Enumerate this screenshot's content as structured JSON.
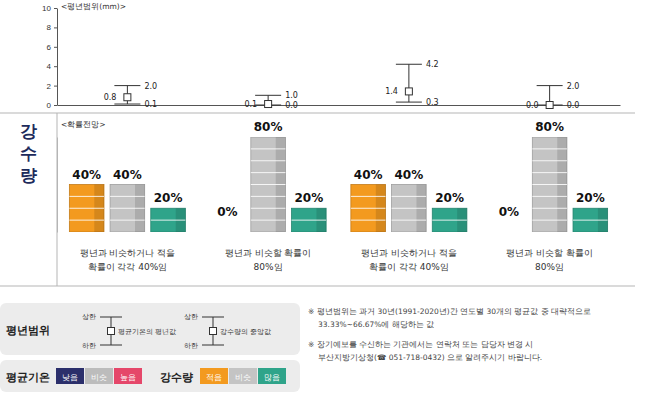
{
  "side_label": "강수량",
  "chart_data": [
    {
      "type": "range",
      "title": "<평년범위(mm)>",
      "categories": [
        null,
        null,
        null,
        null
      ],
      "values": [
        0.8,
        0.1,
        1.4,
        0.0
      ],
      "value_labels": [
        "0.8",
        "0.1",
        "1.4",
        "0.0"
      ],
      "upper": [
        2.0,
        1.0,
        4.2,
        2.0
      ],
      "upper_labels": [
        "2.0",
        "1.0",
        "4.2",
        "2.0"
      ],
      "lower": [
        0.1,
        0.0,
        0.3,
        0.0
      ],
      "lower_labels": [
        "0.1",
        "0.0",
        "0.3",
        "0.0"
      ],
      "color": "#333333",
      "ylim": [
        0,
        10
      ],
      "yticks": [
        0,
        2,
        4,
        6,
        8,
        10
      ],
      "grid": false,
      "data_labels": true
    },
    {
      "type": "bar",
      "title": "<확률전망>",
      "categories": [
        "평년과 비슷하거나 적을\n확률이 각각 40%임",
        "평년과 비슷할 확률이\n80%임",
        "평년과 비슷하거나 적을\n확률이 각각 40%임",
        "평년과 비슷할 확률이\n80%임"
      ],
      "series": [
        {
          "name": "적음",
          "color": "#f39a1f",
          "values": [
            40,
            0,
            40,
            0
          ],
          "value_labels": [
            "40%",
            "0%",
            "40%",
            "0%"
          ]
        },
        {
          "name": "비슷",
          "color": "#c4c4c4",
          "values": [
            40,
            80,
            40,
            80
          ],
          "value_labels": [
            "40%",
            "80%",
            "40%",
            "80%"
          ]
        },
        {
          "name": "많음",
          "color": "#2fa48a",
          "values": [
            20,
            20,
            20,
            20
          ],
          "value_labels": [
            "20%",
            "20%",
            "20%",
            "20%"
          ]
        }
      ],
      "ylim": [
        0,
        80
      ],
      "yticks": [
        0,
        80
      ],
      "tick_labels": false,
      "data_labels": true,
      "legend": "bottom-left"
    }
  ],
  "legend_panel": {
    "range": {
      "title": "평년범위",
      "items": [
        {
          "upper": "상한",
          "lower": "하한",
          "label": "평균기온의 평년값"
        },
        {
          "upper": "상한",
          "lower": "하한",
          "label": "강수량의 중앙값"
        }
      ]
    },
    "temperature": {
      "title": "평균기온",
      "items": [
        {
          "label": "낮음",
          "color": "#2b2f6b"
        },
        {
          "label": "비슷",
          "color": "#bcbcbc"
        },
        {
          "label": "높음",
          "color": "#e5476a"
        }
      ]
    },
    "precipitation": {
      "title": "강수량"
    }
  },
  "notes": [
    [
      "※ 평년범위는 과거 30년(1991-2020년)간 연도별 30개의 평균값 중 대략적으로",
      "33.33%~66.67%에 해당하는 값"
    ],
    [
      "※ 장기예보를 수신하는 기관에서는 연락처 또는 담당자 변경 시",
      "부산지방기상청(☎ 051-718-0432) 으로 알려주시기 바랍니다."
    ]
  ]
}
